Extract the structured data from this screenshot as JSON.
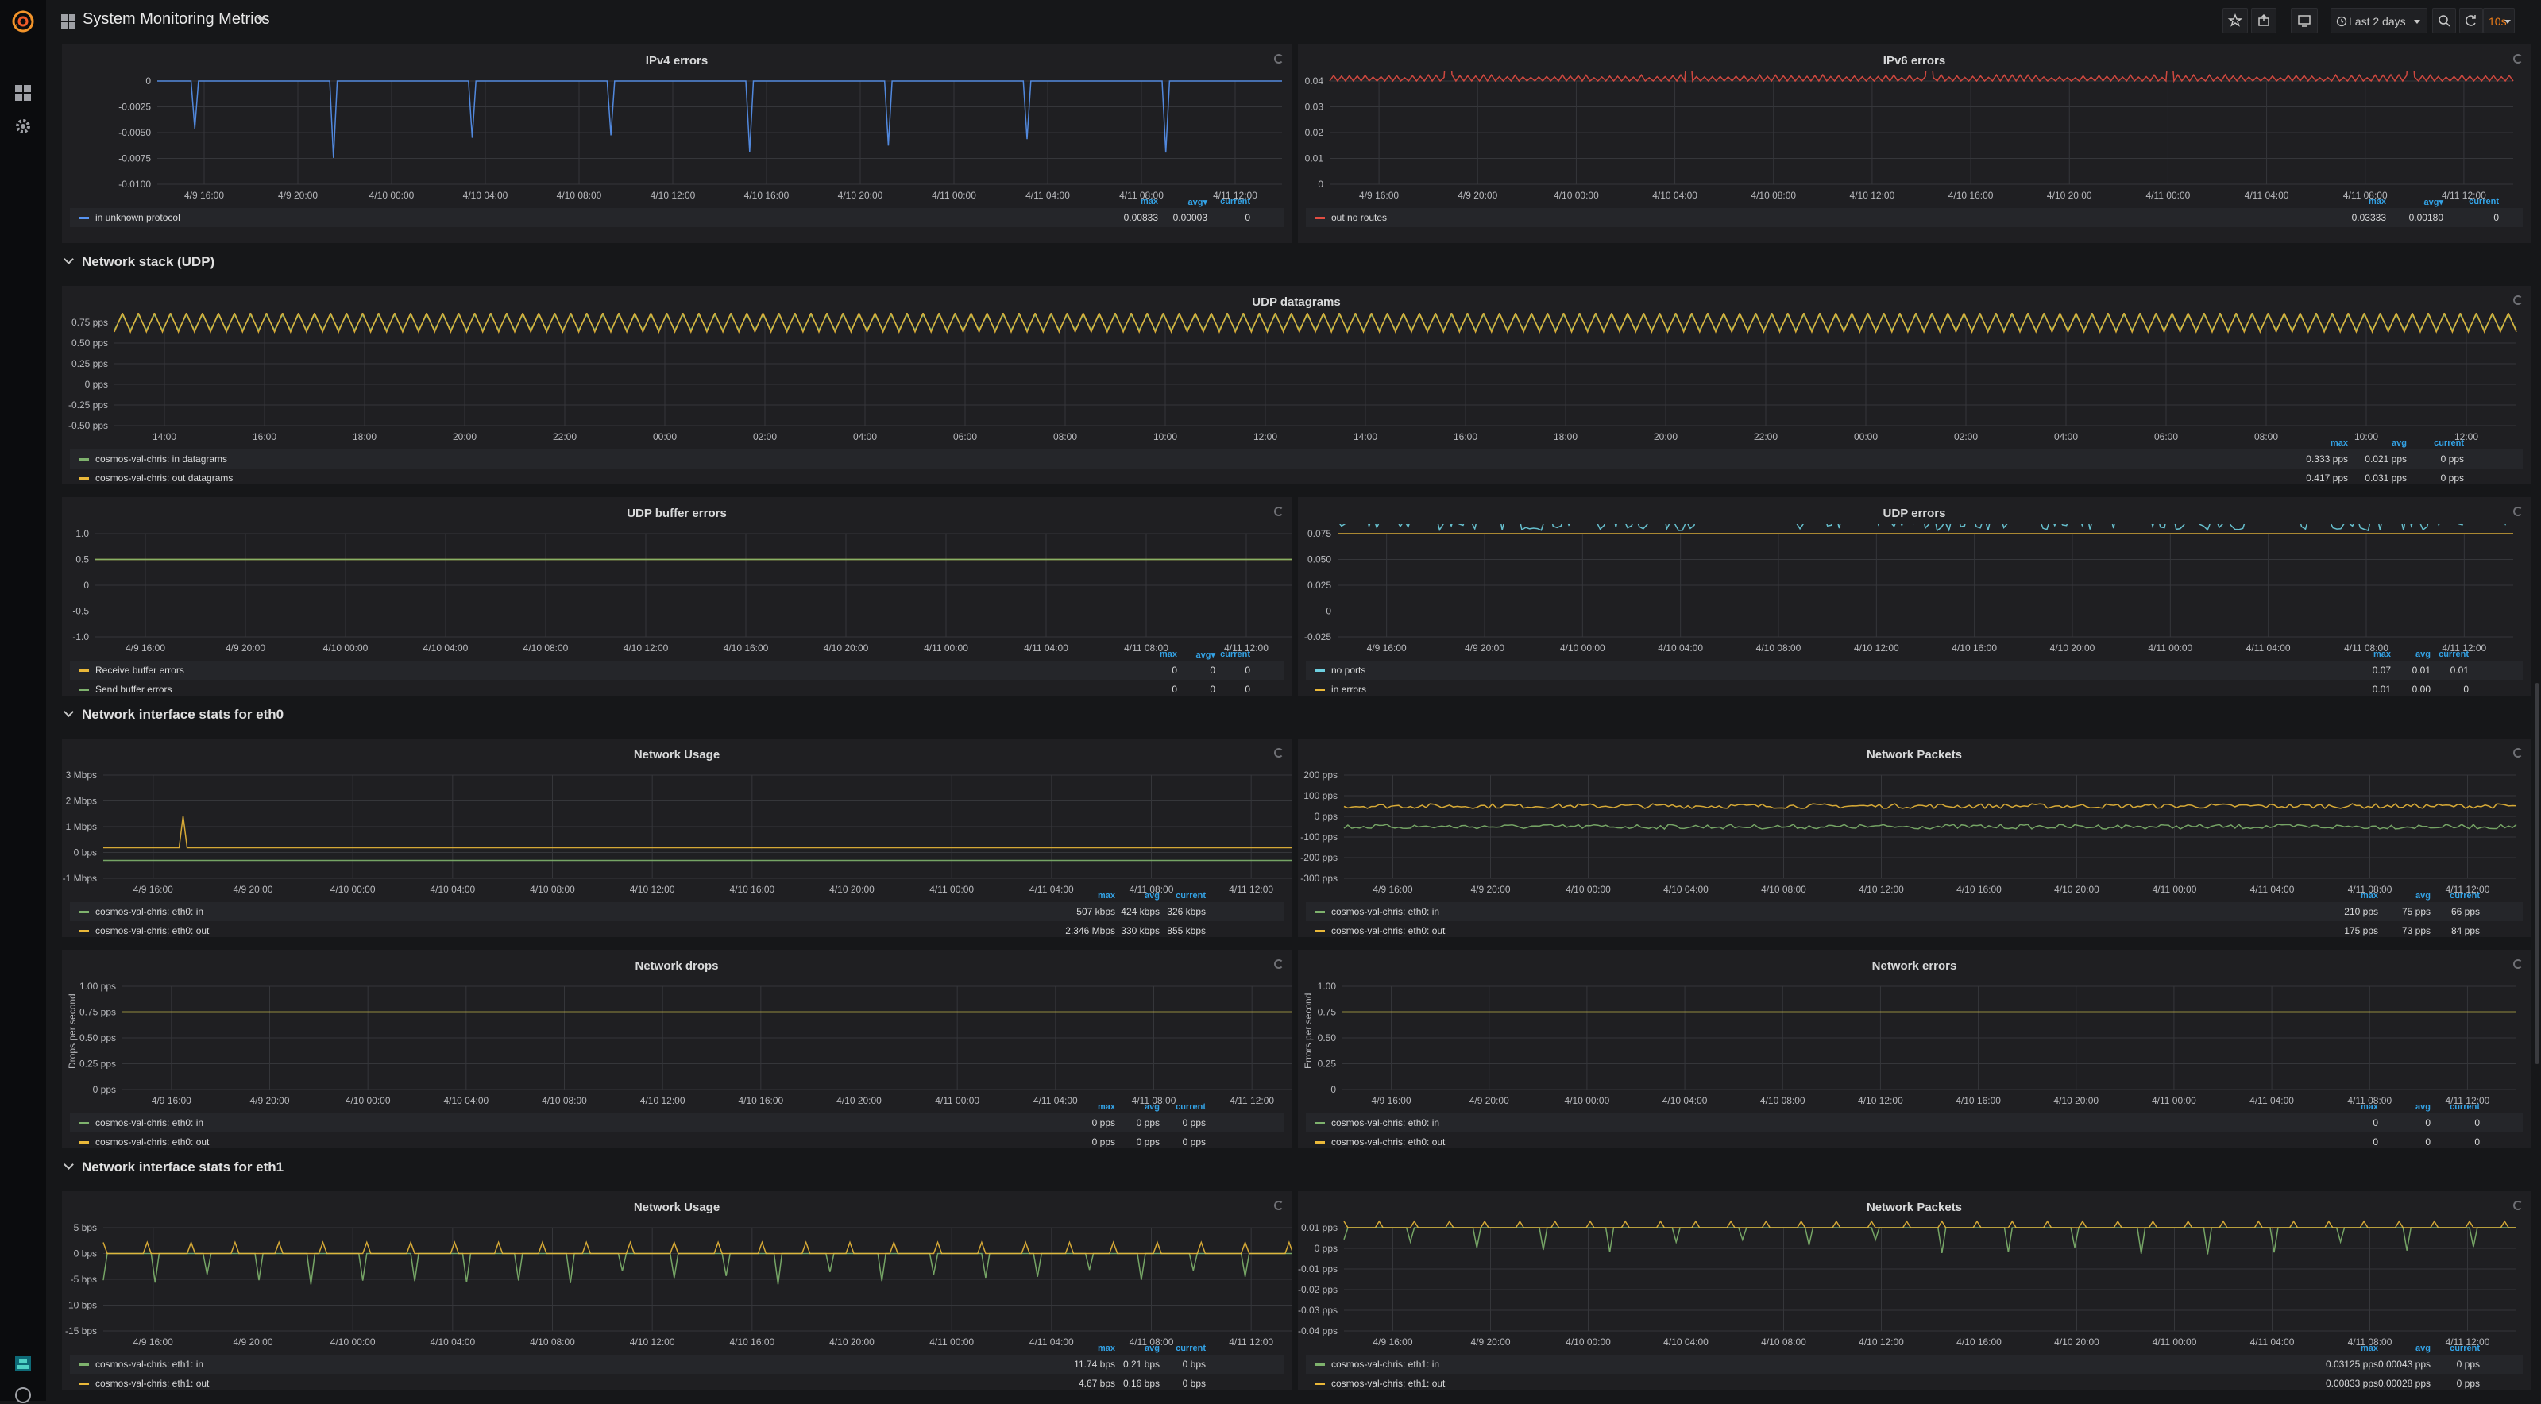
{
  "app": {
    "title": "System Monitoring Metrics",
    "time_range": "Last 2 days",
    "refresh_interval": "10s"
  },
  "sidebar": {
    "items": [
      {
        "name": "dashboards-icon"
      },
      {
        "name": "gear-icon"
      }
    ]
  },
  "rows": [
    {
      "id": "udp",
      "title": "Network stack (UDP)"
    },
    {
      "id": "eth0",
      "title": "Network interface stats for eth0"
    },
    {
      "id": "eth1",
      "title": "Network interface stats for eth1"
    }
  ],
  "panels": [
    {
      "id": "ipv4",
      "title": "IPv4 errors",
      "ylabel": "",
      "yticks": [
        "0",
        "-0.0025",
        "-0.0050",
        "-0.0075",
        "-0.0100"
      ],
      "xticks": [
        "4/9 16:00",
        "4/9 20:00",
        "4/10 00:00",
        "4/10 04:00",
        "4/10 08:00",
        "4/10 12:00",
        "4/10 16:00",
        "4/10 20:00",
        "4/11 00:00",
        "4/11 04:00",
        "4/11 08:00",
        "4/11 12:00"
      ],
      "legend_headers": [
        "max",
        "avg▾",
        "current"
      ],
      "series": [
        {
          "name": "in unknown protocol",
          "color": "#5794f2",
          "values": [
            "0.00833",
            "0.00003",
            "0"
          ]
        }
      ]
    },
    {
      "id": "ipv6",
      "title": "IPv6 errors",
      "ylabel": "",
      "yticks": [
        "0.04",
        "0.03",
        "0.02",
        "0.01",
        "0"
      ],
      "xticks": [
        "4/9 16:00",
        "4/9 20:00",
        "4/10 00:00",
        "4/10 04:00",
        "4/10 08:00",
        "4/10 12:00",
        "4/10 16:00",
        "4/10 20:00",
        "4/11 00:00",
        "4/11 04:00",
        "4/11 08:00",
        "4/11 12:00"
      ],
      "legend_headers": [
        "max",
        "avg▾",
        "current"
      ],
      "series": [
        {
          "name": "out no routes",
          "color": "#e24d42",
          "values": [
            "0.03333",
            "0.00180",
            "0"
          ]
        }
      ]
    },
    {
      "id": "udp_dgrams",
      "title": "UDP datagrams",
      "ylabel": "",
      "yticks": [
        "0.75 pps",
        "0.50 pps",
        "0.25 pps",
        "0 pps",
        "-0.25 pps",
        "-0.50 pps"
      ],
      "xticks": [
        "14:00",
        "16:00",
        "18:00",
        "20:00",
        "22:00",
        "00:00",
        "02:00",
        "04:00",
        "06:00",
        "08:00",
        "10:00",
        "12:00",
        "14:00",
        "16:00",
        "18:00",
        "20:00",
        "22:00",
        "00:00",
        "02:00",
        "04:00",
        "06:00",
        "08:00",
        "10:00",
        "12:00"
      ],
      "legend_headers": [
        "max",
        "avg",
        "current"
      ],
      "series": [
        {
          "name": "cosmos-val-chris: in datagrams",
          "color": "#7eb26d",
          "values": [
            "0.333 pps",
            "0.021 pps",
            "0 pps"
          ]
        },
        {
          "name": "cosmos-val-chris: out datagrams",
          "color": "#eab839",
          "values": [
            "0.417 pps",
            "0.031 pps",
            "0 pps"
          ]
        }
      ]
    },
    {
      "id": "udp_buf",
      "title": "UDP buffer errors",
      "ylabel": "",
      "yticks": [
        "1.0",
        "0.5",
        "0",
        "-0.5",
        "-1.0"
      ],
      "xticks": [
        "4/9 16:00",
        "4/9 20:00",
        "4/10 00:00",
        "4/10 04:00",
        "4/10 08:00",
        "4/10 12:00",
        "4/10 16:00",
        "4/10 20:00",
        "4/11 00:00",
        "4/11 04:00",
        "4/11 08:00",
        "4/11 12:00"
      ],
      "legend_headers": [
        "max",
        "avg▾",
        "current"
      ],
      "series": [
        {
          "name": "Receive buffer errors",
          "color": "#eab839",
          "values": [
            "0",
            "0",
            "0"
          ]
        },
        {
          "name": "Send buffer errors",
          "color": "#7eb26d",
          "values": [
            "0",
            "0",
            "0"
          ]
        }
      ]
    },
    {
      "id": "udp_err",
      "title": "UDP errors",
      "ylabel": "",
      "yticks": [
        "0.075",
        "0.050",
        "0.025",
        "0",
        "-0.025"
      ],
      "xticks": [
        "4/9 16:00",
        "4/9 20:00",
        "4/10 00:00",
        "4/10 04:00",
        "4/10 08:00",
        "4/10 12:00",
        "4/10 16:00",
        "4/10 20:00",
        "4/11 00:00",
        "4/11 04:00",
        "4/11 08:00",
        "4/11 12:00"
      ],
      "legend_headers": [
        "max",
        "avg",
        "current"
      ],
      "series": [
        {
          "name": "no ports",
          "color": "#6ed0e0",
          "values": [
            "0.07",
            "0.01",
            "0.01"
          ]
        },
        {
          "name": "in errors",
          "color": "#eab839",
          "values": [
            "0.01",
            "0.00",
            "0"
          ]
        }
      ]
    },
    {
      "id": "eth0_usage",
      "title": "Network Usage",
      "ylabel": "",
      "yticks": [
        "3 Mbps",
        "2 Mbps",
        "1 Mbps",
        "0 bps",
        "-1 Mbps"
      ],
      "xticks": [
        "4/9 16:00",
        "4/9 20:00",
        "4/10 00:00",
        "4/10 04:00",
        "4/10 08:00",
        "4/10 12:00",
        "4/10 16:00",
        "4/10 20:00",
        "4/11 00:00",
        "4/11 04:00",
        "4/11 08:00",
        "4/11 12:00"
      ],
      "legend_headers": [
        "max",
        "avg",
        "current"
      ],
      "series": [
        {
          "name": "cosmos-val-chris: eth0: in",
          "color": "#7eb26d",
          "values": [
            "507 kbps",
            "424 kbps",
            "326 kbps"
          ]
        },
        {
          "name": "cosmos-val-chris: eth0: out",
          "color": "#eab839",
          "values": [
            "2.346 Mbps",
            "330 kbps",
            "855 kbps"
          ]
        }
      ]
    },
    {
      "id": "eth0_packets",
      "title": "Network Packets",
      "ylabel": "",
      "yticks": [
        "200 pps",
        "100 pps",
        "0 pps",
        "-100 pps",
        "-200 pps",
        "-300 pps"
      ],
      "xticks": [
        "4/9 16:00",
        "4/9 20:00",
        "4/10 00:00",
        "4/10 04:00",
        "4/10 08:00",
        "4/10 12:00",
        "4/10 16:00",
        "4/10 20:00",
        "4/11 00:00",
        "4/11 04:00",
        "4/11 08:00",
        "4/11 12:00"
      ],
      "legend_headers": [
        "max",
        "avg",
        "current"
      ],
      "series": [
        {
          "name": "cosmos-val-chris: eth0: in",
          "color": "#7eb26d",
          "values": [
            "210 pps",
            "75 pps",
            "66 pps"
          ]
        },
        {
          "name": "cosmos-val-chris: eth0: out",
          "color": "#eab839",
          "values": [
            "175 pps",
            "73 pps",
            "84 pps"
          ]
        }
      ]
    },
    {
      "id": "eth0_drops",
      "title": "Network drops",
      "ylabel": "Drops per second",
      "yticks": [
        "1.00 pps",
        "0.75 pps",
        "0.50 pps",
        "0.25 pps",
        "0 pps"
      ],
      "xticks": [
        "4/9 16:00",
        "4/9 20:00",
        "4/10 00:00",
        "4/10 04:00",
        "4/10 08:00",
        "4/10 12:00",
        "4/10 16:00",
        "4/10 20:00",
        "4/11 00:00",
        "4/11 04:00",
        "4/11 08:00",
        "4/11 12:00"
      ],
      "legend_headers": [
        "max",
        "avg",
        "current"
      ],
      "series": [
        {
          "name": "cosmos-val-chris: eth0: in",
          "color": "#7eb26d",
          "values": [
            "0 pps",
            "0 pps",
            "0 pps"
          ]
        },
        {
          "name": "cosmos-val-chris: eth0: out",
          "color": "#eab839",
          "values": [
            "0 pps",
            "0 pps",
            "0 pps"
          ]
        }
      ]
    },
    {
      "id": "eth0_errors",
      "title": "Network errors",
      "ylabel": "Errors per second",
      "yticks": [
        "1.00",
        "0.75",
        "0.50",
        "0.25",
        "0"
      ],
      "xticks": [
        "4/9 16:00",
        "4/9 20:00",
        "4/10 00:00",
        "4/10 04:00",
        "4/10 08:00",
        "4/10 12:00",
        "4/10 16:00",
        "4/10 20:00",
        "4/11 00:00",
        "4/11 04:00",
        "4/11 08:00",
        "4/11 12:00"
      ],
      "legend_headers": [
        "max",
        "avg",
        "current"
      ],
      "series": [
        {
          "name": "cosmos-val-chris: eth0: in",
          "color": "#7eb26d",
          "values": [
            "0",
            "0",
            "0"
          ]
        },
        {
          "name": "cosmos-val-chris: eth0: out",
          "color": "#eab839",
          "values": [
            "0",
            "0",
            "0"
          ]
        }
      ]
    },
    {
      "id": "eth1_usage",
      "title": "Network Usage",
      "ylabel": "",
      "yticks": [
        "5 bps",
        "0 bps",
        "-5 bps",
        "-10 bps",
        "-15 bps"
      ],
      "xticks": [
        "4/9 16:00",
        "4/9 20:00",
        "4/10 00:00",
        "4/10 04:00",
        "4/10 08:00",
        "4/10 12:00",
        "4/10 16:00",
        "4/10 20:00",
        "4/11 00:00",
        "4/11 04:00",
        "4/11 08:00",
        "4/11 12:00"
      ],
      "legend_headers": [
        "max",
        "avg",
        "current"
      ],
      "series": [
        {
          "name": "cosmos-val-chris: eth1: in",
          "color": "#7eb26d",
          "values": [
            "11.74 bps",
            "0.21 bps",
            "0 bps"
          ]
        },
        {
          "name": "cosmos-val-chris: eth1: out",
          "color": "#eab839",
          "values": [
            "4.67 bps",
            "0.16 bps",
            "0 bps"
          ]
        }
      ]
    },
    {
      "id": "eth1_packets",
      "title": "Network Packets",
      "ylabel": "",
      "yticks": [
        "0.01 pps",
        "0 pps",
        "-0.01 pps",
        "-0.02 pps",
        "-0.03 pps",
        "-0.04 pps"
      ],
      "xticks": [
        "4/9 16:00",
        "4/9 20:00",
        "4/10 00:00",
        "4/10 04:00",
        "4/10 08:00",
        "4/10 12:00",
        "4/10 16:00",
        "4/10 20:00",
        "4/11 00:00",
        "4/11 04:00",
        "4/11 08:00",
        "4/11 12:00"
      ],
      "legend_headers": [
        "max",
        "avg",
        "current"
      ],
      "series": [
        {
          "name": "cosmos-val-chris: eth1: in",
          "color": "#7eb26d",
          "values": [
            "0.03125 pps",
            "0.00043 pps",
            "0 pps"
          ]
        },
        {
          "name": "cosmos-val-chris: eth1: out",
          "color": "#eab839",
          "values": [
            "0.00833 pps",
            "0.00028 pps",
            "0 pps"
          ]
        }
      ]
    }
  ]
}
